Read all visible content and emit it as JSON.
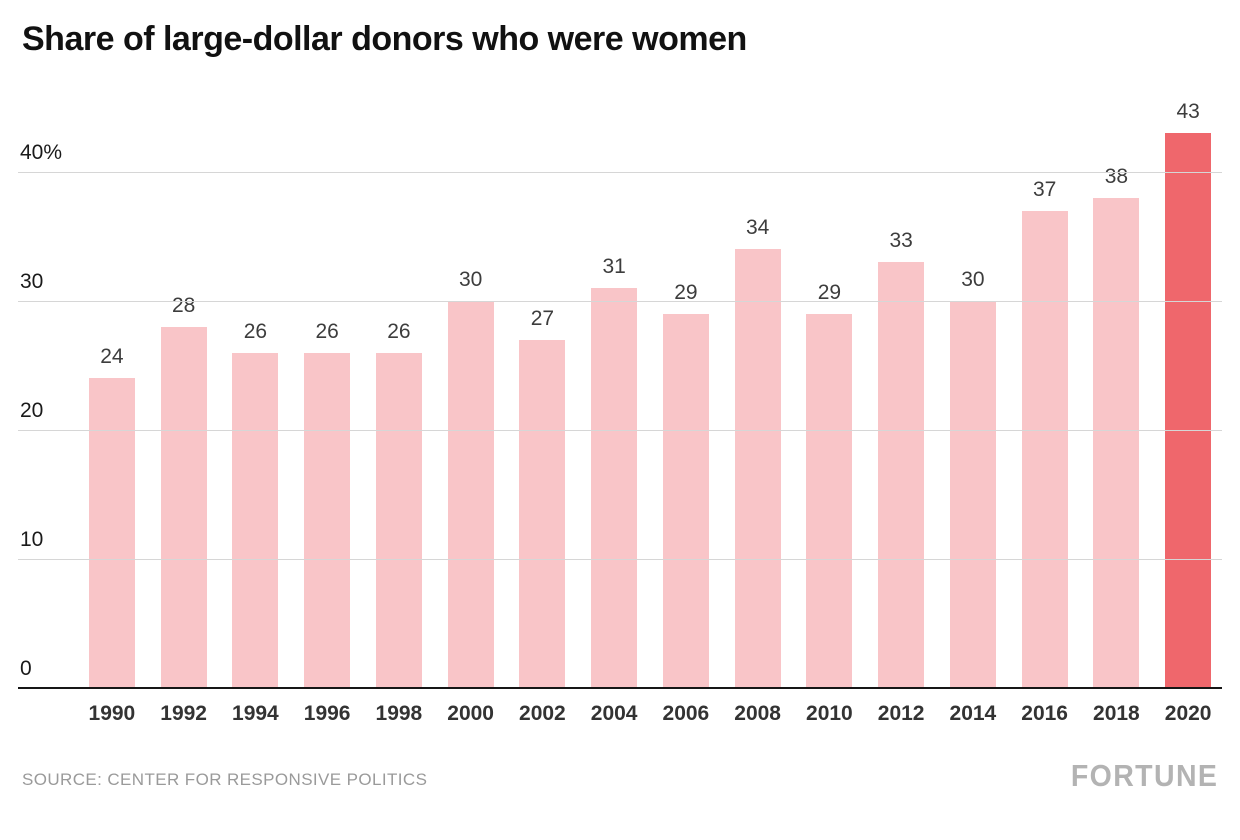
{
  "title": "Share of large-dollar donors who were women",
  "source": "SOURCE: CENTER FOR RESPONSIVE POLITICS",
  "brand": "FORTUNE",
  "chart_data": {
    "type": "bar",
    "title": "Share of large-dollar donors who were women",
    "categories": [
      "1990",
      "1992",
      "1994",
      "1996",
      "1998",
      "2000",
      "2002",
      "2004",
      "2006",
      "2008",
      "2010",
      "2012",
      "2014",
      "2016",
      "2018",
      "2020"
    ],
    "values": [
      24,
      28,
      26,
      26,
      26,
      30,
      27,
      31,
      29,
      34,
      29,
      33,
      30,
      37,
      38,
      43
    ],
    "xlabel": "",
    "ylabel": "",
    "ylim": [
      0,
      45
    ],
    "yticks": [
      0,
      10,
      20,
      30,
      40
    ],
    "ytick_labels": [
      "0",
      "10",
      "20",
      "30",
      "40%"
    ],
    "grid": true,
    "legend": false,
    "value_labels": true,
    "colors": {
      "bar": "#f9c5c8",
      "highlight_bar": "#ef676c",
      "gridline": "#d6d6d6",
      "axis": "#161616",
      "value_label": "#3d3d3d",
      "year_label": "#333333"
    },
    "highlight_index": 15
  }
}
